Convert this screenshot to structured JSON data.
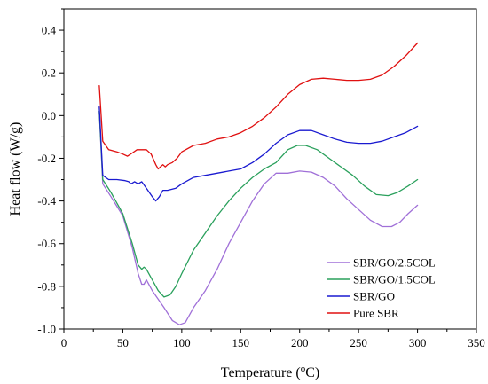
{
  "chart_data": {
    "type": "line",
    "title": "",
    "xlabel": "Temperature (",
    "xlabel_sup": "o",
    "xlabel_suffix": "C)",
    "ylabel": "Heat flow (W/g)",
    "xlim": [
      0,
      350
    ],
    "ylim": [
      -1.0,
      0.5
    ],
    "x_ticks": [
      0,
      50,
      100,
      150,
      200,
      250,
      300,
      350
    ],
    "x_tick_labels": [
      "0",
      "50",
      "100",
      "150",
      "200",
      "250",
      "300",
      "350"
    ],
    "y_ticks": [
      0.4,
      0.2,
      0.0,
      -0.2,
      -0.4,
      -0.6,
      -0.8,
      -1.0
    ],
    "y_tick_labels": [
      "0.4",
      "0.2",
      "0.0",
      "-0.2",
      "-0.4",
      "-0.6",
      "-0.8",
      "-1.0"
    ],
    "grid": false,
    "legend_position": "bottom-right",
    "series": [
      {
        "name": "SBR/GO/2.5COL",
        "color": "#a070d8",
        "points": [
          [
            30,
            0.02
          ],
          [
            33,
            -0.32
          ],
          [
            40,
            -0.38
          ],
          [
            50,
            -0.47
          ],
          [
            58,
            -0.62
          ],
          [
            63,
            -0.74
          ],
          [
            66,
            -0.79
          ],
          [
            68,
            -0.79
          ],
          [
            70,
            -0.77
          ],
          [
            75,
            -0.82
          ],
          [
            85,
            -0.9
          ],
          [
            92,
            -0.96
          ],
          [
            98,
            -0.98
          ],
          [
            103,
            -0.97
          ],
          [
            110,
            -0.9
          ],
          [
            120,
            -0.82
          ],
          [
            130,
            -0.72
          ],
          [
            140,
            -0.6
          ],
          [
            150,
            -0.5
          ],
          [
            160,
            -0.4
          ],
          [
            170,
            -0.32
          ],
          [
            180,
            -0.27
          ],
          [
            190,
            -0.27
          ],
          [
            200,
            -0.26
          ],
          [
            210,
            -0.265
          ],
          [
            220,
            -0.29
          ],
          [
            230,
            -0.33
          ],
          [
            240,
            -0.39
          ],
          [
            250,
            -0.44
          ],
          [
            260,
            -0.49
          ],
          [
            270,
            -0.52
          ],
          [
            278,
            -0.52
          ],
          [
            285,
            -0.5
          ],
          [
            292,
            -0.46
          ],
          [
            300,
            -0.42
          ]
        ]
      },
      {
        "name": "SBR/GO/1.5COL",
        "color": "#2aa05c",
        "points": [
          [
            30,
            0.02
          ],
          [
            33,
            -0.3
          ],
          [
            40,
            -0.36
          ],
          [
            50,
            -0.46
          ],
          [
            58,
            -0.6
          ],
          [
            63,
            -0.7
          ],
          [
            66,
            -0.72
          ],
          [
            68,
            -0.71
          ],
          [
            70,
            -0.72
          ],
          [
            75,
            -0.77
          ],
          [
            80,
            -0.82
          ],
          [
            85,
            -0.85
          ],
          [
            90,
            -0.84
          ],
          [
            95,
            -0.8
          ],
          [
            100,
            -0.74
          ],
          [
            110,
            -0.63
          ],
          [
            120,
            -0.55
          ],
          [
            130,
            -0.47
          ],
          [
            140,
            -0.4
          ],
          [
            150,
            -0.34
          ],
          [
            160,
            -0.29
          ],
          [
            170,
            -0.25
          ],
          [
            180,
            -0.22
          ],
          [
            190,
            -0.16
          ],
          [
            198,
            -0.14
          ],
          [
            205,
            -0.14
          ],
          [
            215,
            -0.16
          ],
          [
            225,
            -0.2
          ],
          [
            235,
            -0.24
          ],
          [
            245,
            -0.28
          ],
          [
            255,
            -0.33
          ],
          [
            265,
            -0.37
          ],
          [
            275,
            -0.375
          ],
          [
            283,
            -0.36
          ],
          [
            292,
            -0.33
          ],
          [
            300,
            -0.3
          ]
        ]
      },
      {
        "name": "SBR/GO",
        "color": "#1a1ad0",
        "points": [
          [
            30,
            0.04
          ],
          [
            33,
            -0.28
          ],
          [
            38,
            -0.3
          ],
          [
            45,
            -0.3
          ],
          [
            52,
            -0.305
          ],
          [
            55,
            -0.31
          ],
          [
            57,
            -0.32
          ],
          [
            60,
            -0.31
          ],
          [
            63,
            -0.32
          ],
          [
            66,
            -0.31
          ],
          [
            70,
            -0.34
          ],
          [
            75,
            -0.38
          ],
          [
            78,
            -0.4
          ],
          [
            81,
            -0.38
          ],
          [
            84,
            -0.35
          ],
          [
            88,
            -0.35
          ],
          [
            95,
            -0.34
          ],
          [
            100,
            -0.32
          ],
          [
            110,
            -0.29
          ],
          [
            120,
            -0.28
          ],
          [
            130,
            -0.27
          ],
          [
            140,
            -0.26
          ],
          [
            150,
            -0.25
          ],
          [
            160,
            -0.22
          ],
          [
            170,
            -0.18
          ],
          [
            180,
            -0.13
          ],
          [
            190,
            -0.09
          ],
          [
            200,
            -0.07
          ],
          [
            210,
            -0.07
          ],
          [
            220,
            -0.09
          ],
          [
            230,
            -0.11
          ],
          [
            240,
            -0.125
          ],
          [
            250,
            -0.13
          ],
          [
            260,
            -0.13
          ],
          [
            270,
            -0.12
          ],
          [
            280,
            -0.1
          ],
          [
            290,
            -0.08
          ],
          [
            300,
            -0.05
          ]
        ]
      },
      {
        "name": "Pure SBR",
        "color": "#e01010",
        "points": [
          [
            30,
            0.14
          ],
          [
            33,
            -0.12
          ],
          [
            38,
            -0.16
          ],
          [
            45,
            -0.17
          ],
          [
            50,
            -0.18
          ],
          [
            54,
            -0.19
          ],
          [
            58,
            -0.175
          ],
          [
            62,
            -0.16
          ],
          [
            70,
            -0.16
          ],
          [
            74,
            -0.18
          ],
          [
            78,
            -0.23
          ],
          [
            80,
            -0.25
          ],
          [
            82,
            -0.24
          ],
          [
            84,
            -0.23
          ],
          [
            86,
            -0.24
          ],
          [
            88,
            -0.23
          ],
          [
            92,
            -0.22
          ],
          [
            96,
            -0.2
          ],
          [
            100,
            -0.17
          ],
          [
            110,
            -0.14
          ],
          [
            120,
            -0.13
          ],
          [
            130,
            -0.11
          ],
          [
            140,
            -0.1
          ],
          [
            150,
            -0.08
          ],
          [
            160,
            -0.05
          ],
          [
            170,
            -0.01
          ],
          [
            180,
            0.04
          ],
          [
            190,
            0.1
          ],
          [
            200,
            0.145
          ],
          [
            210,
            0.17
          ],
          [
            220,
            0.175
          ],
          [
            230,
            0.17
          ],
          [
            240,
            0.165
          ],
          [
            250,
            0.165
          ],
          [
            260,
            0.17
          ],
          [
            270,
            0.19
          ],
          [
            280,
            0.23
          ],
          [
            290,
            0.28
          ],
          [
            300,
            0.34
          ]
        ]
      }
    ]
  }
}
